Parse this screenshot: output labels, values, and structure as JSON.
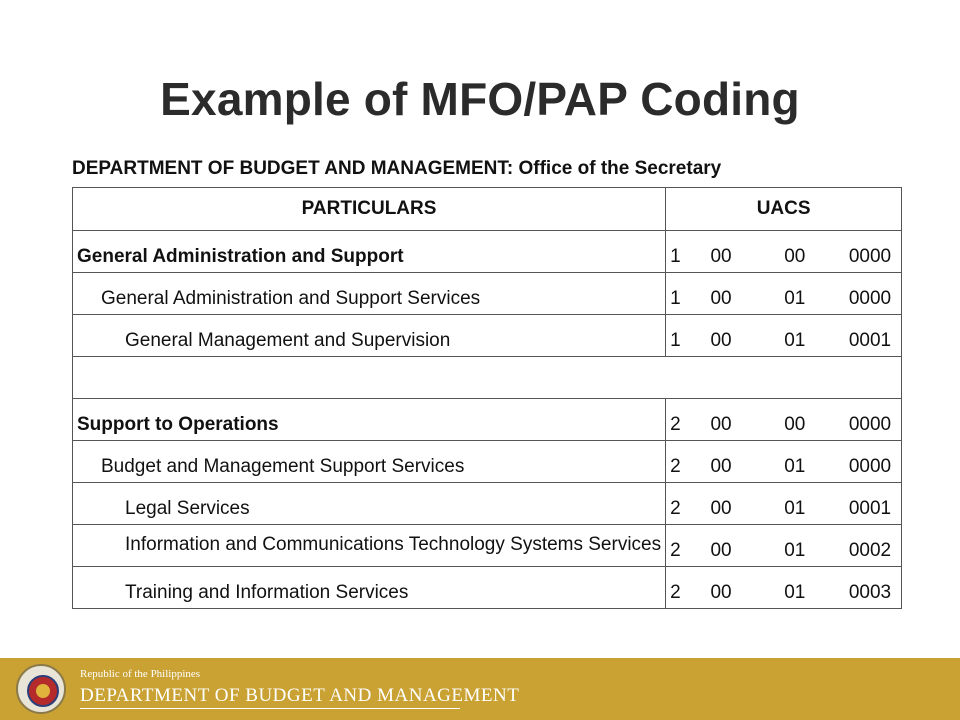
{
  "title": "Example of MFO/PAP Coding",
  "subheading": "DEPARTMENT OF BUDGET AND MANAGEMENT: Office of the Secretary",
  "table": {
    "headers": [
      "PARTICULARS",
      "UACS"
    ],
    "rows": [
      {
        "label": "General Administration and Support",
        "code": [
          "1",
          "00",
          "00",
          "0000"
        ]
      },
      {
        "label": "General Administration and Support Services",
        "code": [
          "1",
          "00",
          "01",
          "0000"
        ]
      },
      {
        "label": "General Management and Supervision",
        "code": [
          "1",
          "00",
          "01",
          "0001"
        ]
      },
      {
        "label": "Support to Operations",
        "code": [
          "2",
          "00",
          "00",
          "0000"
        ]
      },
      {
        "label": "Budget and Management Support Services",
        "code": [
          "2",
          "00",
          "01",
          "0000"
        ]
      },
      {
        "label": "Legal Services",
        "code": [
          "2",
          "00",
          "01",
          "0001"
        ]
      },
      {
        "label": "Information and Communications Technology Systems Services",
        "code": [
          "2",
          "00",
          "01",
          "0002"
        ]
      },
      {
        "label": "Training and Information Services",
        "code": [
          "2",
          "00",
          "01",
          "0003"
        ]
      }
    ]
  },
  "footer": {
    "small_text": "Republic of the Philippines",
    "big_text": "DEPARTMENT OF BUDGET AND MANAGEMENT",
    "seal_icon": "dbm-seal-icon"
  },
  "colors": {
    "footer_bar": "#c9a233",
    "title_text": "#2b2b2b"
  }
}
